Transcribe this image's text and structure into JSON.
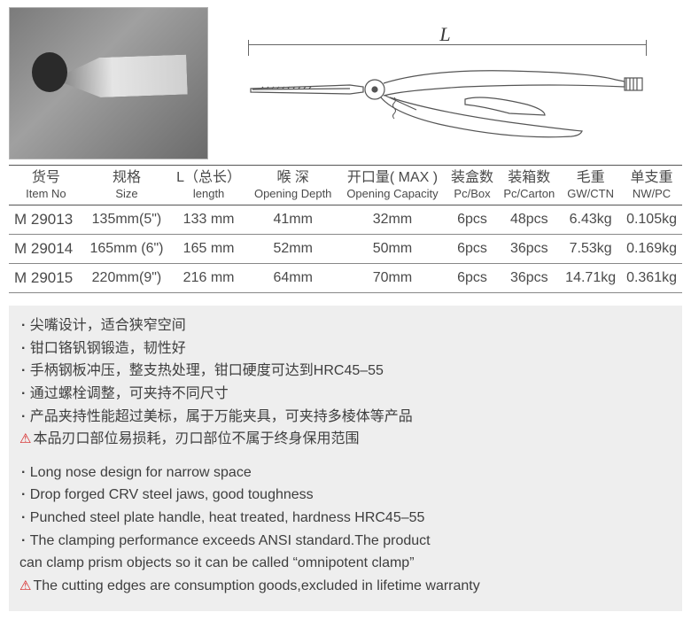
{
  "diagram": {
    "length_label": "L"
  },
  "table": {
    "headers": [
      {
        "cn": "货号",
        "en": "Item No"
      },
      {
        "cn": "规格",
        "en": "Size"
      },
      {
        "cn": "L（总长）",
        "en": "length"
      },
      {
        "cn": "喉 深",
        "en": "Opening Depth"
      },
      {
        "cn": "开口量( MAX )",
        "en": "Opening Capacity"
      },
      {
        "cn": "装盒数",
        "en": "Pc/Box"
      },
      {
        "cn": "装箱数",
        "en": "Pc/Carton"
      },
      {
        "cn": "毛重",
        "en": "GW/CTN"
      },
      {
        "cn": "单支重",
        "en": "NW/PC"
      }
    ],
    "rows": [
      [
        "M 29013",
        "135mm(5\")",
        "133 mm",
        "41mm",
        "32mm",
        "6pcs",
        "48pcs",
        "6.43kg",
        "0.105kg"
      ],
      [
        "M 29014",
        "165mm (6\")",
        "165 mm",
        "52mm",
        "50mm",
        "6pcs",
        "36pcs",
        "7.53kg",
        "0.169kg"
      ],
      [
        "M 29015",
        "220mm(9\")",
        "216 mm",
        "64mm",
        "70mm",
        "6pcs",
        "36pcs",
        "14.71kg",
        "0.361kg"
      ]
    ]
  },
  "features": {
    "cn": [
      "尖嘴设计，适合狭窄空间",
      "钳口铬钒钢锻造，韧性好",
      "手柄钢板冲压，整支热处理，钳口硬度可达到HRC45–55",
      "通过螺栓调整，可夹持不同尺寸",
      "产品夹持性能超过美标，属于万能夹具，可夹持多棱体等产品"
    ],
    "cn_warn": "本品刃口部位易损耗，刃口部位不属于终身保用范围",
    "en": [
      "Long nose design for narrow space",
      "Drop forged CRV steel jaws, good toughness",
      "Punched steel plate handle, heat treated, hardness HRC45–55",
      "The clamping performance exceeds ANSI standard.The product"
    ],
    "en_cont": "can clamp prism objects so it can be called “omnipotent clamp”",
    "en_warn": "The cutting edges are consumption goods,excluded in lifetime warranty"
  },
  "colors": {
    "text": "#464646",
    "border": "#555555",
    "row_border": "#888888",
    "feature_bg": "#eeeeee",
    "warn": "#d62020"
  }
}
